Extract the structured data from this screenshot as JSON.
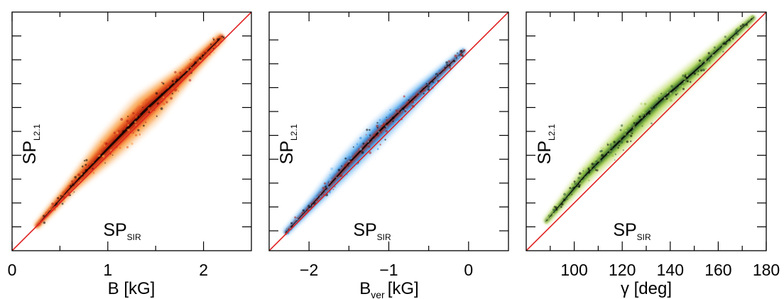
{
  "chart_data": [
    {
      "type": "scatter",
      "panel": "magnetic-field-strength",
      "xlabel": "B [kG]",
      "ylabel_main": "SP",
      "ylabel_sub": "L2.1",
      "inner_label_main": "SP",
      "inner_label_sub": "SIR",
      "xlim": [
        0,
        2.5
      ],
      "ylim": [
        0,
        2.5
      ],
      "xticks": [
        0,
        1,
        2
      ],
      "xtick_labels": [
        "0",
        "1",
        "2"
      ],
      "minor_xticks": [
        0.5,
        1.5
      ],
      "yticks": [
        0.25,
        0.5,
        0.75,
        1.0,
        1.25,
        1.5,
        1.75,
        2.0,
        2.25
      ],
      "density_colormap": [
        "#fde6cf",
        "#f9a24a",
        "#e8561c",
        "#b01c10",
        "#000000"
      ],
      "cloud": {
        "centerline": [
          [
            0.25,
            0.25
          ],
          [
            0.6,
            0.65
          ],
          [
            1.0,
            1.07
          ],
          [
            1.4,
            1.48
          ],
          [
            1.8,
            1.85
          ],
          [
            2.2,
            2.25
          ]
        ],
        "spread": [
          0.05,
          0.1,
          0.22,
          0.27,
          0.15,
          0.08
        ]
      },
      "reference_line": {
        "from": [
          0,
          0
        ],
        "to": [
          2.5,
          2.5
        ],
        "color": "#e02020"
      }
    },
    {
      "type": "scatter",
      "panel": "vertical-field",
      "xlabel_main": "B",
      "xlabel_sub": "ver",
      "xlabel_unit": "[kG]",
      "ylabel_main": "SP",
      "ylabel_sub": "L2.1",
      "inner_label_main": "SP",
      "inner_label_sub": "SIR",
      "xlim": [
        -2.5,
        0.5
      ],
      "ylim": [
        -2.5,
        0.5
      ],
      "xticks": [
        -2,
        -1,
        0
      ],
      "xtick_labels": [
        "−2",
        "−1",
        "0"
      ],
      "minor_xticks": [
        -1.5,
        -0.5
      ],
      "yticks": [
        -2.25,
        -1.95,
        -1.65,
        -1.35,
        -1.05,
        -0.75,
        -0.45,
        -0.15,
        0.15
      ],
      "density_colormap": [
        "#dcecfb",
        "#7ec0f2",
        "#2f8de0",
        "#b01c10",
        "#000000"
      ],
      "cloud": {
        "centerline": [
          [
            -2.3,
            -2.28
          ],
          [
            -1.9,
            -1.85
          ],
          [
            -1.5,
            -1.4
          ],
          [
            -1.1,
            -0.98
          ],
          [
            -0.6,
            -0.5
          ],
          [
            -0.05,
            0.02
          ]
        ],
        "spread": [
          0.06,
          0.12,
          0.2,
          0.22,
          0.16,
          0.06
        ]
      },
      "reference_line": {
        "from": [
          -2.5,
          -2.5
        ],
        "to": [
          0.5,
          0.5
        ],
        "color": "#e02020"
      }
    },
    {
      "type": "scatter",
      "panel": "inclination",
      "xlabel": "γ [deg]",
      "ylabel_main": "SP",
      "ylabel_sub": "L2.1",
      "inner_label_main": "SP",
      "inner_label_sub": "SIR",
      "xlim": [
        80,
        180
      ],
      "ylim": [
        80,
        180
      ],
      "xticks": [
        100,
        120,
        140,
        160,
        180
      ],
      "xtick_labels": [
        "100",
        "120",
        "140",
        "160",
        "180"
      ],
      "minor_xticks": [
        90,
        110,
        130,
        150,
        170
      ],
      "yticks": [
        90,
        100,
        110,
        120,
        130,
        140,
        150,
        160,
        170
      ],
      "density_colormap": [
        "#eef5d6",
        "#c5df7a",
        "#8cbf3c",
        "#2c5a35",
        "#000000"
      ],
      "cloud": {
        "centerline": [
          [
            88,
            92
          ],
          [
            105,
            112
          ],
          [
            120,
            127
          ],
          [
            135,
            142
          ],
          [
            150,
            155
          ],
          [
            165,
            169
          ],
          [
            175,
            178
          ]
        ],
        "spread": [
          2,
          5,
          7,
          7,
          6,
          4,
          2
        ]
      },
      "reference_line": {
        "from": [
          80,
          80
        ],
        "to": [
          180,
          180
        ],
        "color": "#e02020"
      }
    }
  ]
}
